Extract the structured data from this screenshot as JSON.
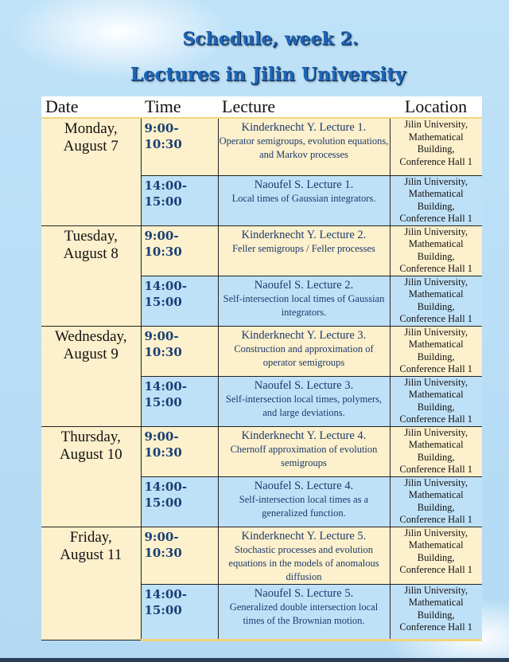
{
  "title_line1": "Schedule, week 2.",
  "title_line2": "Lectures in Jilin University",
  "headers": {
    "date": "Date",
    "time": "Time",
    "lecture": "Lecture",
    "location": "Location"
  },
  "days": [
    {
      "day": "Monday,",
      "date": "August 7",
      "sessions": [
        {
          "time1": "9:00-",
          "time2": "10:30",
          "title": "Kinderknecht Y. Lecture 1.",
          "desc": "Operator semigroups, evolution equations, and Markov processes",
          "loc": [
            "Jilin University,",
            "Mathematical",
            "Building,",
            "Conference Hall 1"
          ]
        },
        {
          "time1": "14:00-",
          "time2": "15:00",
          "title": "Naoufel S. Lecture 1.",
          "desc": "Local times of Gaussian integrators.",
          "loc": [
            "Jilin University,",
            "Mathematical",
            "Building,",
            "Conference Hall 1"
          ]
        }
      ]
    },
    {
      "day": "Tuesday,",
      "date": "August 8",
      "sessions": [
        {
          "time1": "9:00-",
          "time2": "10:30",
          "title": "Kinderknecht Y. Lecture 2.",
          "desc": "Feller semigroups / Feller processes",
          "loc": [
            "Jilin University,",
            "Mathematical",
            "Building,",
            "Conference Hall 1"
          ]
        },
        {
          "time1": "14:00-",
          "time2": "15:00",
          "title": "Naoufel S. Lecture 2.",
          "desc": "Self-intersection local times of Gaussian integrators.",
          "loc": [
            "Jilin University,",
            "Mathematical",
            "Building,",
            "Conference Hall 1"
          ]
        }
      ]
    },
    {
      "day": "Wednesday,",
      "date": "August 9",
      "sessions": [
        {
          "time1": "9:00-",
          "time2": "10:30",
          "title": "Kinderknecht Y. Lecture 3.",
          "desc": "Construction and approximation of operator semigroups",
          "loc": [
            "Jilin University,",
            "Mathematical",
            "Building,",
            "Conference Hall 1"
          ]
        },
        {
          "time1": "14:00-",
          "time2": "15:00",
          "title": "Naoufel S. Lecture 3.",
          "desc": "Self-intersection local times, polymers, and large deviations.",
          "loc": [
            "Jilin University,",
            "Mathematical",
            "Building,",
            "Conference Hall 1"
          ]
        }
      ]
    },
    {
      "day": "Thursday,",
      "date": "August 10",
      "sessions": [
        {
          "time1": "9:00-",
          "time2": "10:30",
          "title": "Kinderknecht Y. Lecture 4.",
          "desc": "Chernoff approximation of evolution semigroups",
          "loc": [
            "Jilin University,",
            "Mathematical",
            "Building,",
            "Conference Hall 1"
          ]
        },
        {
          "time1": "14:00-",
          "time2": "15:00",
          "title": "Naoufel S. Lecture 4.",
          "desc": "Self-intersection local times as a generalized function.",
          "loc": [
            "Jilin University,",
            "Mathematical",
            "Building,",
            "Conference Hall 1"
          ]
        }
      ]
    },
    {
      "day": "Friday,",
      "date": "August 11",
      "sessions": [
        {
          "time1": "9:00-",
          "time2": "10:30",
          "title": "Kinderknecht Y. Lecture 5.",
          "desc": "Stochastic processes and evolution equations in the models of anomalous diffusion",
          "loc": [
            "Jilin University,",
            "Mathematical",
            "Building,",
            "Conference Hall 1"
          ]
        },
        {
          "time1": "14:00-",
          "time2": "15:00",
          "title": "Naoufel S. Lecture 5.",
          "desc": "Generalized double intersection local times of the Brownian motion.",
          "loc": [
            "Jilin University,",
            "Mathematical",
            "Building,",
            "Conference Hall 1"
          ]
        }
      ]
    }
  ],
  "colors": {
    "morning": "#fdf0cc",
    "afternoon": "#bfe1f8",
    "title": "#1f66b6"
  }
}
